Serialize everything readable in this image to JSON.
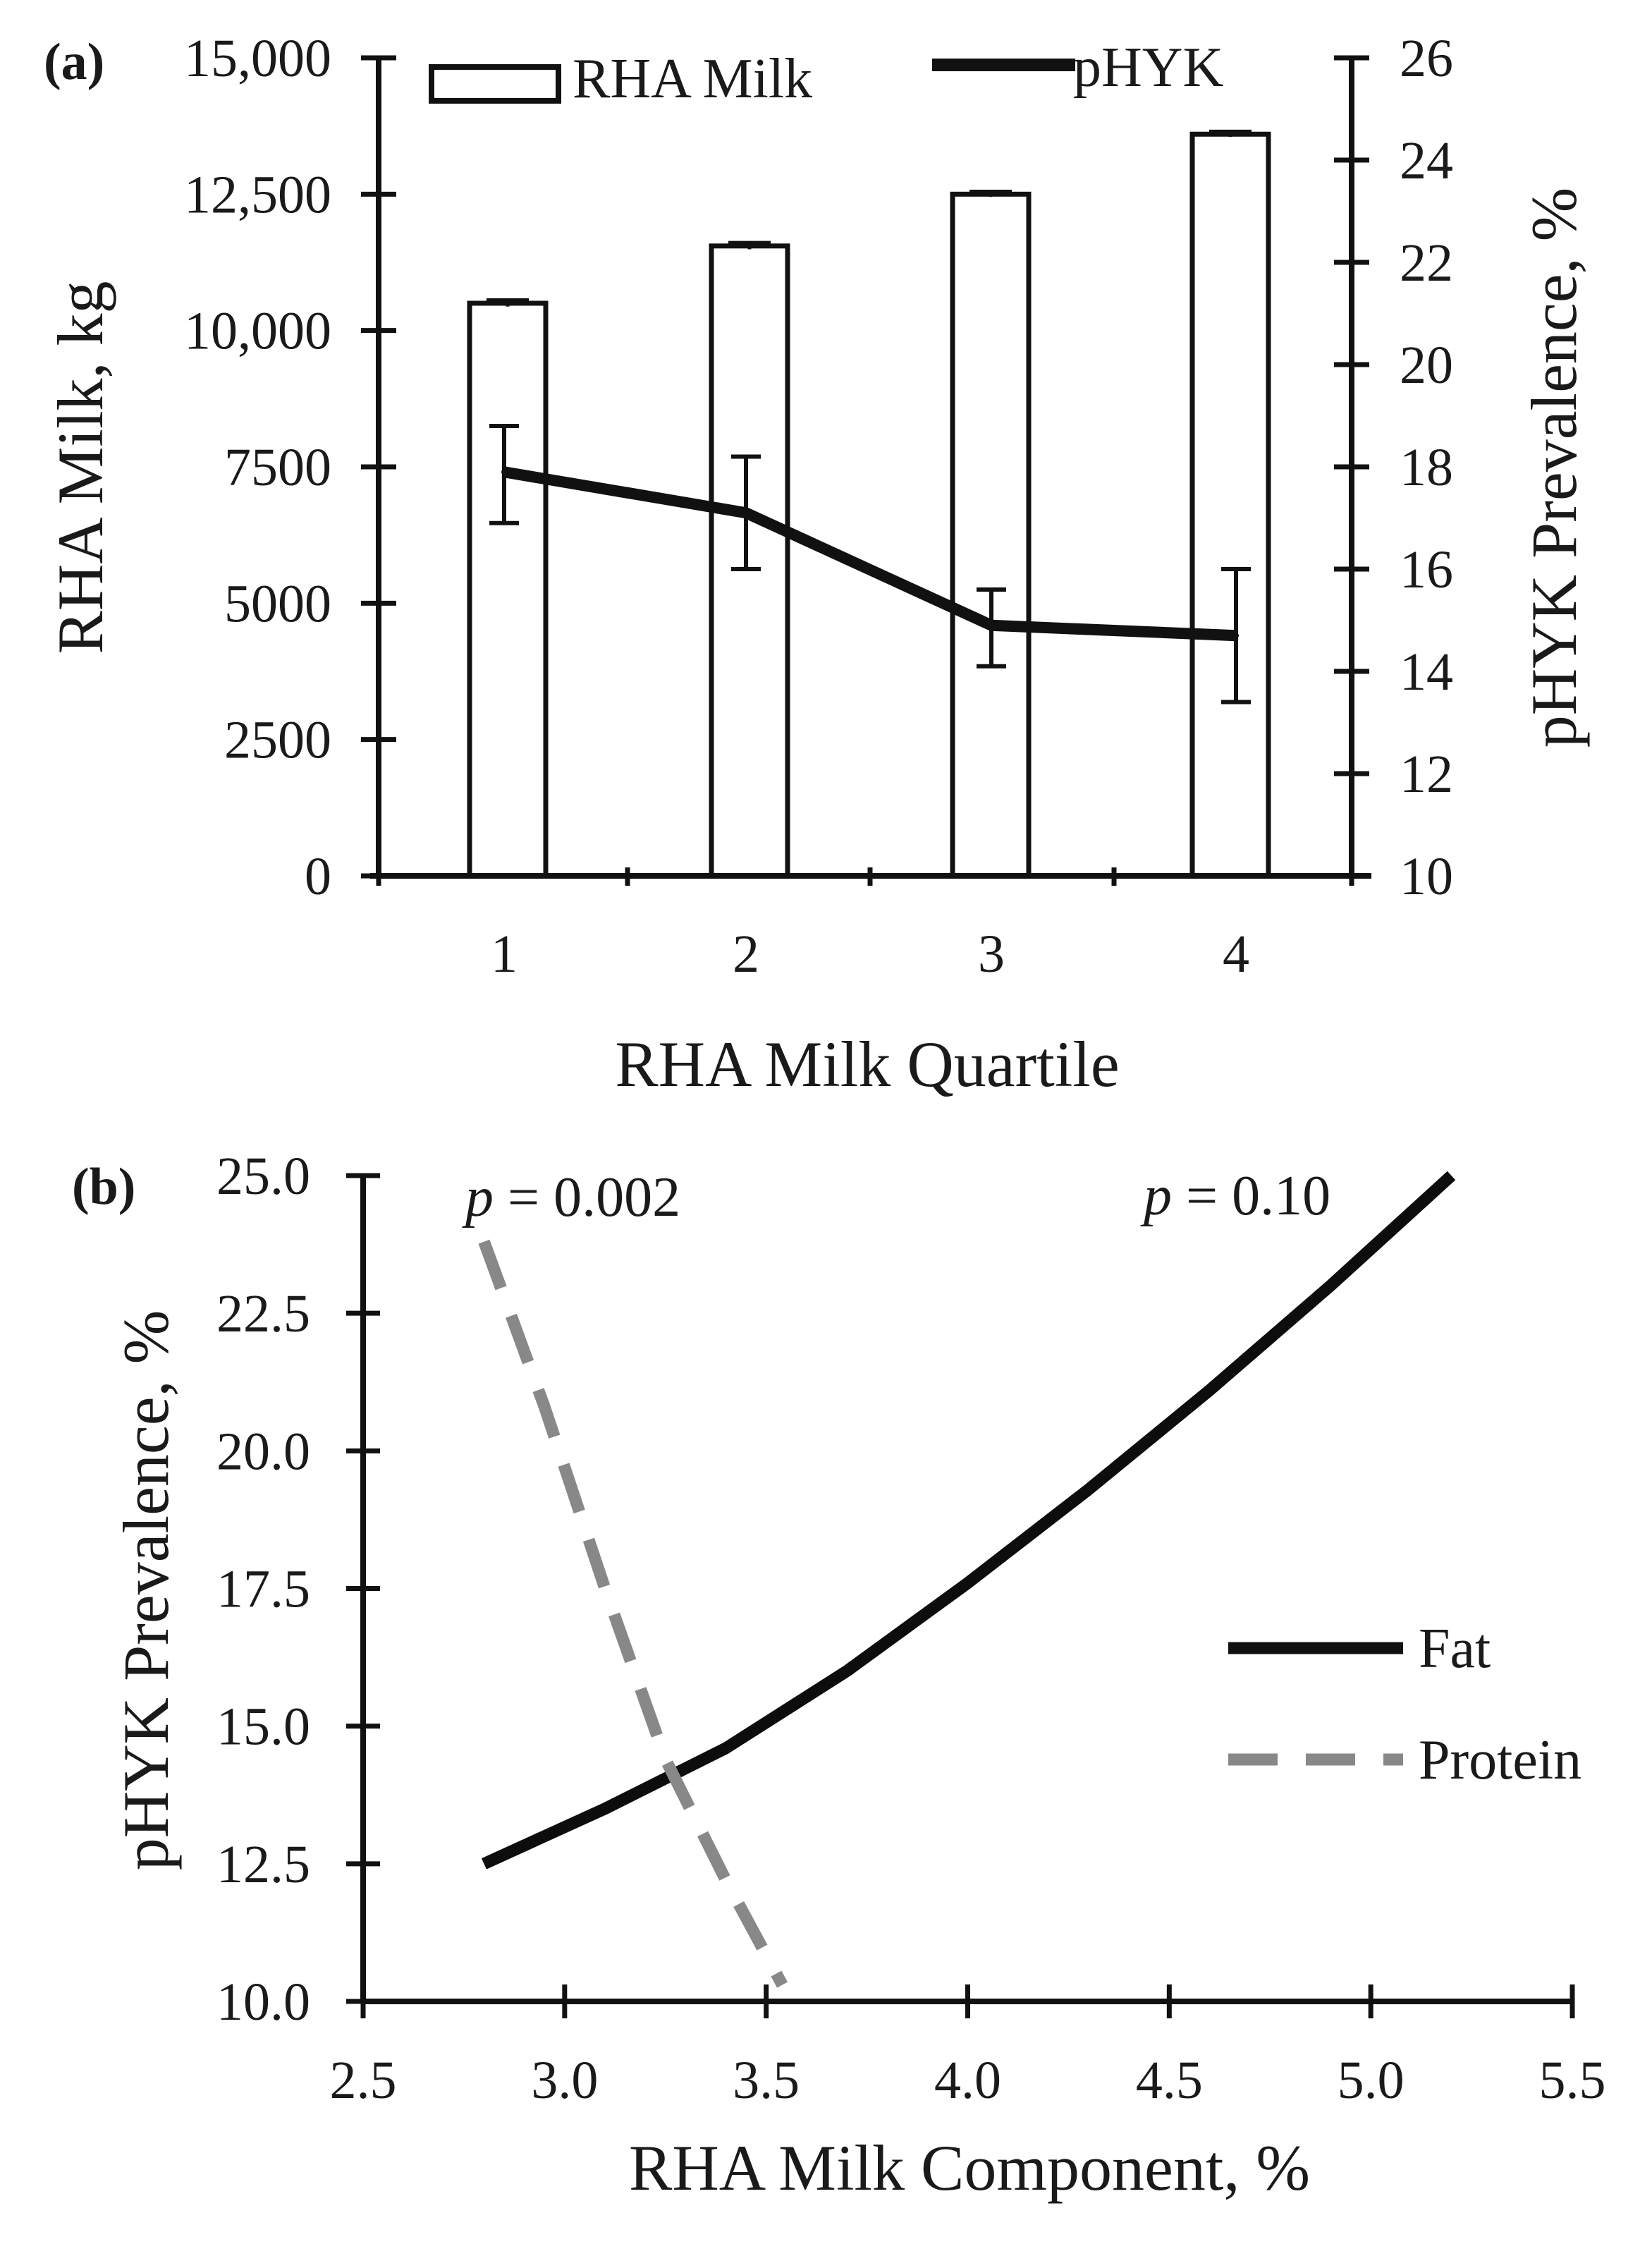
{
  "chart_data": [
    {
      "panel_label": "(a)",
      "type": "bar",
      "categories": [
        "1",
        "2",
        "3",
        "4"
      ],
      "xlabel": "RHA Milk Quartile",
      "y_left": {
        "label": "RHA Milk, kg",
        "lim": [
          0,
          15000
        ],
        "ticks": [
          0,
          2500,
          5000,
          7500,
          10000,
          12500,
          15000
        ],
        "tick_labels": [
          "0",
          "2500",
          "5000",
          "7500",
          "10,000",
          "12,500",
          "15,000"
        ]
      },
      "y_right": {
        "label": "pHYK Prevalence, %",
        "lim": [
          10,
          26
        ],
        "ticks": [
          10,
          12,
          14,
          16,
          18,
          20,
          22,
          24,
          26
        ],
        "tick_labels": [
          "10",
          "12",
          "14",
          "16",
          "18",
          "20",
          "22",
          "24",
          "26"
        ]
      },
      "series": [
        {
          "name": "RHA Milk",
          "kind": "bar",
          "axis": "left",
          "values": [
            10500,
            11550,
            12500,
            13600
          ],
          "error": [
            60,
            60,
            50,
            50
          ]
        },
        {
          "name": "pHYK",
          "kind": "line",
          "axis": "right",
          "values": [
            17.9,
            17.1,
            14.9,
            14.7
          ],
          "error_low": [
            16.9,
            16.0,
            14.1,
            13.4
          ],
          "error_high": [
            18.8,
            18.2,
            15.6,
            16.0
          ]
        }
      ],
      "legend": {
        "position": "top",
        "items": [
          "RHA Milk",
          "pHYK"
        ]
      }
    },
    {
      "panel_label": "(b)",
      "type": "line",
      "xlabel": "RHA Milk Component, %",
      "ylabel": "pHYK Prevalence, %",
      "xlim": [
        2.5,
        5.5
      ],
      "ylim": [
        10.0,
        25.0
      ],
      "x_ticks": [
        "2.5",
        "3.0",
        "3.5",
        "4.0",
        "4.5",
        "5.0",
        "5.5"
      ],
      "y_ticks": [
        "10.0",
        "12.5",
        "15.0",
        "17.5",
        "20.0",
        "22.5",
        "25.0"
      ],
      "series": [
        {
          "name": "Fat",
          "style": "solid",
          "color": "#0d0d0d",
          "x": [
            2.8,
            3.1,
            3.4,
            3.7,
            4.0,
            4.3,
            4.6,
            4.9,
            5.2
          ],
          "y": [
            12.5,
            13.5,
            14.6,
            16.0,
            17.6,
            19.3,
            21.1,
            23.0,
            25.0
          ]
        },
        {
          "name": "Protein",
          "style": "dashed",
          "color": "#888888",
          "x": [
            2.8,
            2.95,
            3.1,
            3.25,
            3.4,
            3.54
          ],
          "y": [
            23.8,
            20.8,
            17.5,
            14.4,
            12.2,
            10.3
          ]
        }
      ],
      "annotations": [
        {
          "prefix": "p",
          "text": " = 0.002"
        },
        {
          "prefix": "p",
          "text": " = 0.10"
        }
      ],
      "legend": {
        "position": "right",
        "items": [
          "Fat",
          "Protein"
        ]
      }
    }
  ]
}
